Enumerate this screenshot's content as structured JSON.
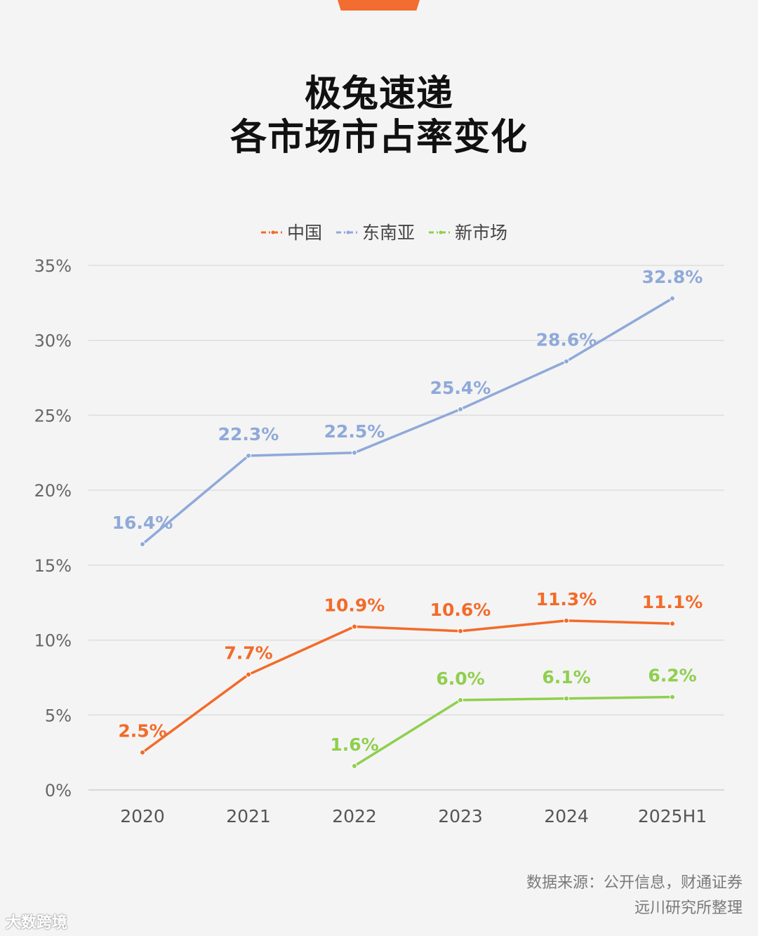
{
  "title": {
    "line1": "极兔速递",
    "line2": "各市场市占率变化"
  },
  "chart_data": {
    "type": "line",
    "title": "极兔速递 各市场市占率变化",
    "categories": [
      "2020",
      "2021",
      "2022",
      "2023",
      "2024",
      "2025H1"
    ],
    "y_ticks": [
      "0%",
      "5%",
      "10%",
      "15%",
      "20%",
      "25%",
      "30%",
      "35%"
    ],
    "ylim": [
      0,
      35
    ],
    "ylabel": "",
    "xlabel": "",
    "grid": true,
    "legend_position": "top-center",
    "series": [
      {
        "name": "中国",
        "color": "#f26b2a",
        "values": [
          2.5,
          7.7,
          10.9,
          10.6,
          11.3,
          11.1
        ],
        "labels": [
          "2.5%",
          "7.7%",
          "10.9%",
          "10.6%",
          "11.3%",
          "11.1%"
        ]
      },
      {
        "name": "东南亚",
        "color": "#8fa9d9",
        "values": [
          16.4,
          22.3,
          22.5,
          25.4,
          28.6,
          32.8
        ],
        "labels": [
          "16.4%",
          "22.3%",
          "22.5%",
          "25.4%",
          "28.6%",
          "32.8%"
        ]
      },
      {
        "name": "新市场",
        "color": "#8fcf4e",
        "values": [
          null,
          null,
          1.6,
          6.0,
          6.1,
          6.2
        ],
        "labels": [
          null,
          null,
          "1.6%",
          "6.0%",
          "6.1%",
          "6.2%"
        ]
      }
    ]
  },
  "source": {
    "line1": "数据来源：公开信息，财通证券",
    "line2": "远川研究所整理"
  },
  "watermark": "大数跨境"
}
